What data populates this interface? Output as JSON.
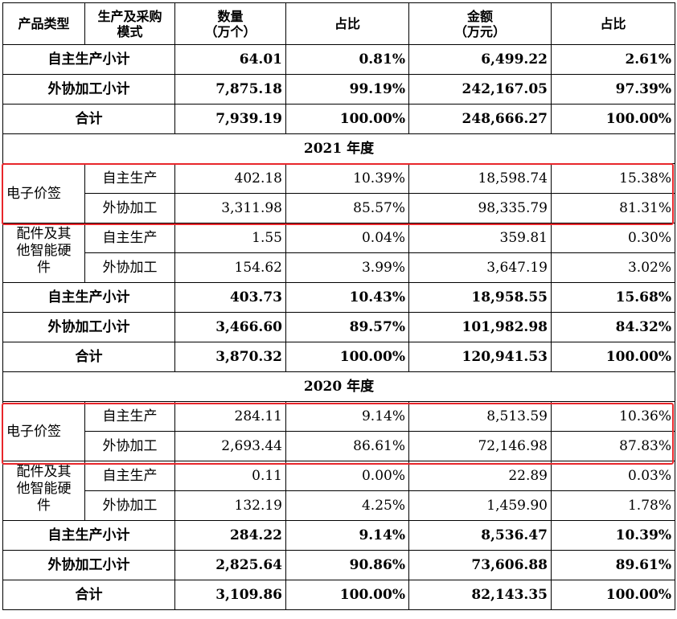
{
  "header": {
    "product_type": "产品类型",
    "mode_line1": "生产及采购",
    "mode_line2": "模式",
    "qty_line1": "数量",
    "qty_line2": "（万个）",
    "ratio": "占比",
    "amount_line1": "金额",
    "amount_line2": "（万元）",
    "ratio2": "占比"
  },
  "sections": [
    {
      "summary": [
        {
          "label": "自主生产小计",
          "qty": "64.01",
          "qty_pct": "0.81%",
          "amt": "6,499.22",
          "amt_pct": "2.61%"
        },
        {
          "label": "外协加工小计",
          "qty": "7,875.18",
          "qty_pct": "99.19%",
          "amt": "242,167.05",
          "amt_pct": "97.39%"
        },
        {
          "label": "合计",
          "qty": "7,939.19",
          "qty_pct": "100.00%",
          "amt": "248,666.27",
          "amt_pct": "100.00%"
        }
      ]
    },
    {
      "year": "2021 年度",
      "groups": [
        {
          "product": "电子价签",
          "rows": [
            {
              "mode": "自主生产",
              "qty": "402.18",
              "qty_pct": "10.39%",
              "amt": "18,598.74",
              "amt_pct": "15.38%"
            },
            {
              "mode": "外协加工",
              "qty": "3,311.98",
              "qty_pct": "85.57%",
              "amt": "98,335.79",
              "amt_pct": "81.31%"
            }
          ]
        },
        {
          "product_lines": [
            "配件及其",
            "他智能硬",
            "件"
          ],
          "rows": [
            {
              "mode": "自主生产",
              "qty": "1.55",
              "qty_pct": "0.04%",
              "amt": "359.81",
              "amt_pct": "0.30%"
            },
            {
              "mode": "外协加工",
              "qty": "154.62",
              "qty_pct": "3.99%",
              "amt": "3,647.19",
              "amt_pct": "3.02%"
            }
          ]
        }
      ],
      "summary": [
        {
          "label": "自主生产小计",
          "qty": "403.73",
          "qty_pct": "10.43%",
          "amt": "18,958.55",
          "amt_pct": "15.68%"
        },
        {
          "label": "外协加工小计",
          "qty": "3,466.60",
          "qty_pct": "89.57%",
          "amt": "101,982.98",
          "amt_pct": "84.32%"
        },
        {
          "label": "合计",
          "qty": "3,870.32",
          "qty_pct": "100.00%",
          "amt": "120,941.53",
          "amt_pct": "100.00%"
        }
      ]
    },
    {
      "year": "2020 年度",
      "groups": [
        {
          "product": "电子价签",
          "rows": [
            {
              "mode": "自主生产",
              "qty": "284.11",
              "qty_pct": "9.14%",
              "amt": "8,513.59",
              "amt_pct": "10.36%"
            },
            {
              "mode": "外协加工",
              "qty": "2,693.44",
              "qty_pct": "86.61%",
              "amt": "72,146.98",
              "amt_pct": "87.83%"
            }
          ]
        },
        {
          "product_lines": [
            "配件及其",
            "他智能硬",
            "件"
          ],
          "rows": [
            {
              "mode": "自主生产",
              "qty": "0.11",
              "qty_pct": "0.00%",
              "amt": "22.89",
              "amt_pct": "0.03%"
            },
            {
              "mode": "外协加工",
              "qty": "132.19",
              "qty_pct": "4.25%",
              "amt": "1,459.90",
              "amt_pct": "1.78%"
            }
          ]
        }
      ],
      "summary": [
        {
          "label": "自主生产小计",
          "qty": "284.22",
          "qty_pct": "9.14%",
          "amt": "8,536.47",
          "amt_pct": "10.39%"
        },
        {
          "label": "外协加工小计",
          "qty": "2,825.64",
          "qty_pct": "90.86%",
          "amt": "73,606.88",
          "amt_pct": "89.61%"
        },
        {
          "label": "合计",
          "qty": "3,109.86",
          "qty_pct": "100.00%",
          "amt": "82,143.35",
          "amt_pct": "100.00%"
        }
      ]
    }
  ],
  "highlight_color": "#e8262b"
}
